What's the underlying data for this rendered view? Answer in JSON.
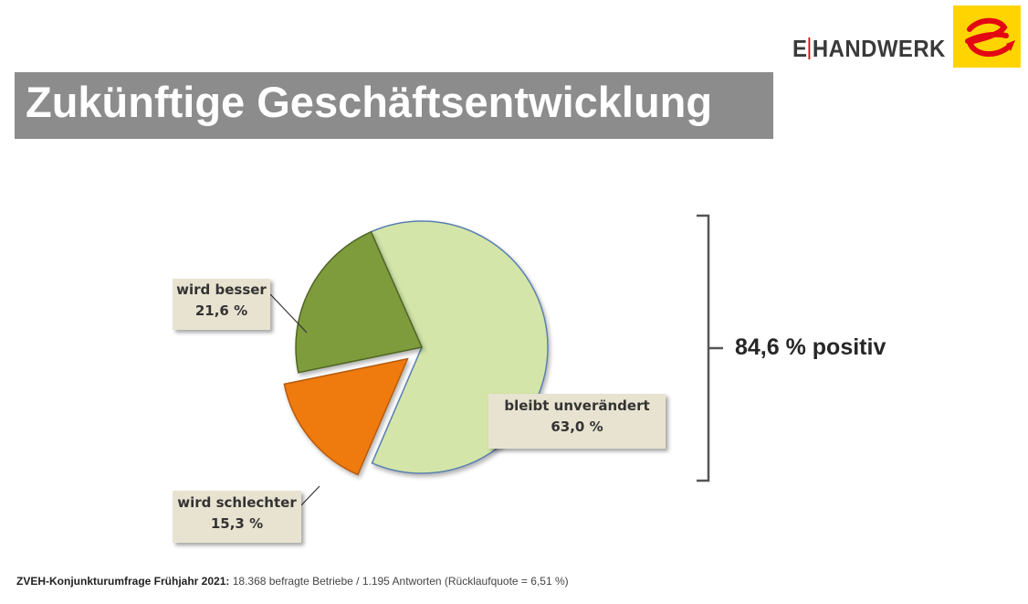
{
  "logo": {
    "text_left": "E",
    "text_right": "HANDWERK",
    "brand_yellow": "#ffd400",
    "brand_red": "#e30613"
  },
  "title": "Zukünftige Geschäftsentwicklung",
  "chart_data": {
    "type": "pie",
    "slices": [
      {
        "label": "bleibt unverändert",
        "value": 63.0,
        "value_label": "63,0 %",
        "color": "#d3e5a8"
      },
      {
        "label": "wird schlechter",
        "value": 15.3,
        "value_label": "15,3 %",
        "color": "#ef7a10"
      },
      {
        "label": "wird besser",
        "value": 21.6,
        "value_label": "21,6 %",
        "color": "#7f9c3d"
      }
    ],
    "annotation": "84,6 % positiv"
  },
  "footer": {
    "bold": "ZVEH-Konjunkturumfrage Frühjahr 2021:",
    "text": "18.368 befragte Betriebe / 1.195 Antworten (Rücklaufquote = 6,51 %)"
  }
}
